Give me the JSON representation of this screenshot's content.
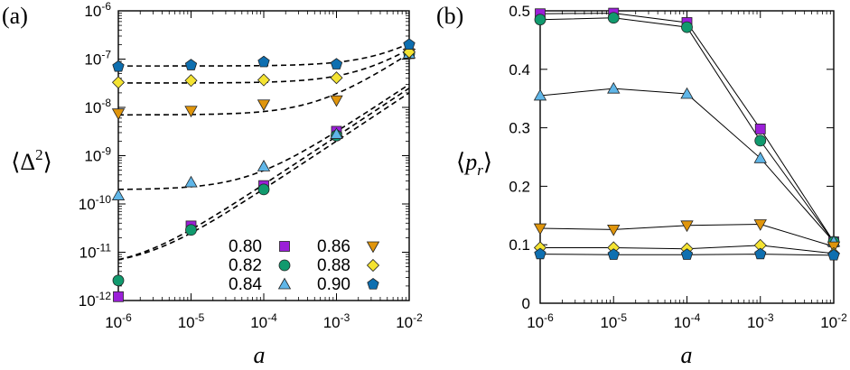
{
  "colors": {
    "0.80": "#9b1fd8",
    "0.82": "#119a6e",
    "0.84": "#5fb6e8",
    "0.86": "#e0950b",
    "0.88": "#f4e332",
    "0.90": "#0e6fb0"
  },
  "chart_data": [
    {
      "id": "a",
      "panel_label": "(a)",
      "type": "scatter",
      "xscale": "log",
      "yscale": "log",
      "xlabel": "a",
      "ylabel": "⟨Δ²⟩",
      "xlim": [
        1e-06,
        0.01
      ],
      "ylim": [
        1e-12,
        1e-06
      ],
      "x_tick_labels": [
        {
          "base": "10",
          "exp": "-6"
        },
        {
          "base": "10",
          "exp": "-5"
        },
        {
          "base": "10",
          "exp": "-4"
        },
        {
          "base": "10",
          "exp": "-3"
        },
        {
          "base": "10",
          "exp": "-2"
        }
      ],
      "y_tick_labels": [
        {
          "base": "10",
          "exp": "-12"
        },
        {
          "base": "10",
          "exp": "-11"
        },
        {
          "base": "10",
          "exp": "-10"
        },
        {
          "base": "10",
          "exp": "-9"
        },
        {
          "base": "10",
          "exp": "-8"
        },
        {
          "base": "10",
          "exp": "-7"
        },
        {
          "base": "10",
          "exp": "-6"
        }
      ],
      "legend": {
        "position": "bottom-right",
        "columns": 2
      },
      "x": [
        1e-06,
        1e-05,
        0.0001,
        0.001,
        0.01
      ],
      "series": [
        {
          "name": "0.80",
          "marker": "square",
          "values": [
            1.2e-12,
            3.5e-11,
            2.4e-10,
            3.2e-09,
            1.3e-07
          ]
        },
        {
          "name": "0.82",
          "marker": "circle",
          "values": [
            2.6e-12,
            2.9e-11,
            2e-10,
            2.6e-09,
            1.3e-07
          ]
        },
        {
          "name": "0.84",
          "marker": "triangle",
          "values": [
            1.5e-10,
            2.8e-10,
            6e-10,
            2.8e-09,
            1.3e-07
          ]
        },
        {
          "name": "0.86",
          "marker": "tri-down",
          "values": [
            7.5e-09,
            8.5e-09,
            1.15e-08,
            1.4e-08,
            1.3e-07
          ]
        },
        {
          "name": "0.88",
          "marker": "diamond",
          "values": [
            3.3e-08,
            3.6e-08,
            3.7e-08,
            4.1e-08,
            1.4e-07
          ]
        },
        {
          "name": "0.90",
          "marker": "pentagon",
          "values": [
            7e-08,
            7.5e-08,
            8.7e-08,
            7.8e-08,
            2e-07
          ]
        }
      ],
      "fits": [
        {
          "label": "fit 0.80",
          "y_at_x_min": 7e-12,
          "y_at_x_max": 2.5e-08
        },
        {
          "label": "fit 0.82",
          "y_at_x_min": 7e-12,
          "y_at_x_max": 2e-08
        },
        {
          "label": "fit 0.84",
          "y_at_x_min": 2e-10,
          "y_at_x_max": 3e-08
        },
        {
          "label": "fit 0.86",
          "y_at_x_min": 7e-09,
          "y_at_x_max": 1.3e-07
        },
        {
          "label": "fit 0.88",
          "y_at_x_min": 3.2e-08,
          "y_at_x_max": 1.6e-07
        },
        {
          "label": "fit 0.90",
          "y_at_x_min": 7.2e-08,
          "y_at_x_max": 2.1e-07
        }
      ]
    },
    {
      "id": "b",
      "panel_label": "(b)",
      "type": "line",
      "xscale": "log",
      "yscale": "linear",
      "xlabel": "a",
      "ylabel": "⟨p_r⟩",
      "xlim": [
        1e-06,
        0.01
      ],
      "ylim": [
        0,
        0.5
      ],
      "x_tick_labels": [
        {
          "base": "10",
          "exp": "-6"
        },
        {
          "base": "10",
          "exp": "-5"
        },
        {
          "base": "10",
          "exp": "-4"
        },
        {
          "base": "10",
          "exp": "-3"
        },
        {
          "base": "10",
          "exp": "-2"
        }
      ],
      "y_ticks": [
        0,
        0.1,
        0.2,
        0.3,
        0.4,
        0.5
      ],
      "y_tick_labels": [
        "0",
        "0.1",
        "0.2",
        "0.3",
        "0.4",
        "0.5"
      ],
      "x": [
        1e-06,
        1e-05,
        0.0001,
        0.001,
        0.01
      ],
      "series": [
        {
          "name": "0.80",
          "marker": "square",
          "values": [
            0.495,
            0.496,
            0.48,
            0.298,
            0.105
          ]
        },
        {
          "name": "0.82",
          "marker": "circle",
          "values": [
            0.485,
            0.488,
            0.472,
            0.278,
            0.105
          ]
        },
        {
          "name": "0.84",
          "marker": "triangle",
          "values": [
            0.355,
            0.367,
            0.358,
            0.248,
            0.105
          ]
        },
        {
          "name": "0.86",
          "marker": "tri-down",
          "values": [
            0.128,
            0.126,
            0.133,
            0.135,
            0.097
          ]
        },
        {
          "name": "0.88",
          "marker": "diamond",
          "values": [
            0.095,
            0.095,
            0.093,
            0.099,
            0.085
          ]
        },
        {
          "name": "0.90",
          "marker": "pentagon",
          "values": [
            0.084,
            0.083,
            0.083,
            0.084,
            0.082
          ]
        }
      ]
    }
  ]
}
